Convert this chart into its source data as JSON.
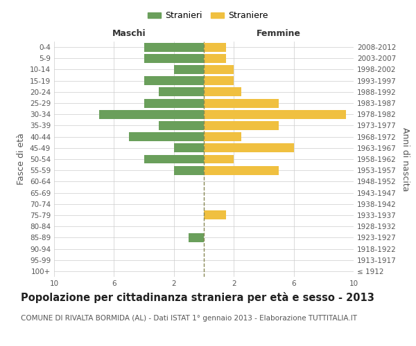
{
  "age_groups": [
    "100+",
    "95-99",
    "90-94",
    "85-89",
    "80-84",
    "75-79",
    "70-74",
    "65-69",
    "60-64",
    "55-59",
    "50-54",
    "45-49",
    "40-44",
    "35-39",
    "30-34",
    "25-29",
    "20-24",
    "15-19",
    "10-14",
    "5-9",
    "0-4"
  ],
  "birth_years": [
    "≤ 1912",
    "1913-1917",
    "1918-1922",
    "1923-1927",
    "1928-1932",
    "1933-1937",
    "1938-1942",
    "1943-1947",
    "1948-1952",
    "1953-1957",
    "1958-1962",
    "1963-1967",
    "1968-1972",
    "1973-1977",
    "1978-1982",
    "1983-1987",
    "1988-1992",
    "1993-1997",
    "1998-2002",
    "2003-2007",
    "2008-2012"
  ],
  "maschi": [
    0,
    0,
    0,
    1,
    0,
    0,
    0,
    0,
    0,
    2,
    4,
    2,
    5,
    3,
    7,
    4,
    3,
    4,
    2,
    4,
    4
  ],
  "femmine": [
    0,
    0,
    0,
    0,
    0,
    1.5,
    0,
    0,
    0,
    5,
    2,
    6,
    2.5,
    5,
    9.5,
    5,
    2.5,
    2,
    2,
    1.5,
    1.5
  ],
  "color_maschi": "#6a9f5b",
  "color_femmine": "#f0c040",
  "title": "Popolazione per cittadinanza straniera per età e sesso - 2013",
  "subtitle": "COMUNE DI RIVALTA BORMIDA (AL) - Dati ISTAT 1° gennaio 2013 - Elaborazione TUTTITALIA.IT",
  "ylabel_left": "Fasce di età",
  "ylabel_right": "Anni di nascita",
  "xlabel_left": "Maschi",
  "xlabel_right": "Femmine",
  "xlim": 10,
  "legend_maschi": "Stranieri",
  "legend_femmine": "Straniere",
  "bg_color": "#ffffff",
  "grid_color": "#cccccc",
  "bar_height": 0.8,
  "center_line_color": "#888855",
  "title_fontsize": 10.5,
  "subtitle_fontsize": 7.5,
  "tick_fontsize": 7.5,
  "label_fontsize": 9
}
